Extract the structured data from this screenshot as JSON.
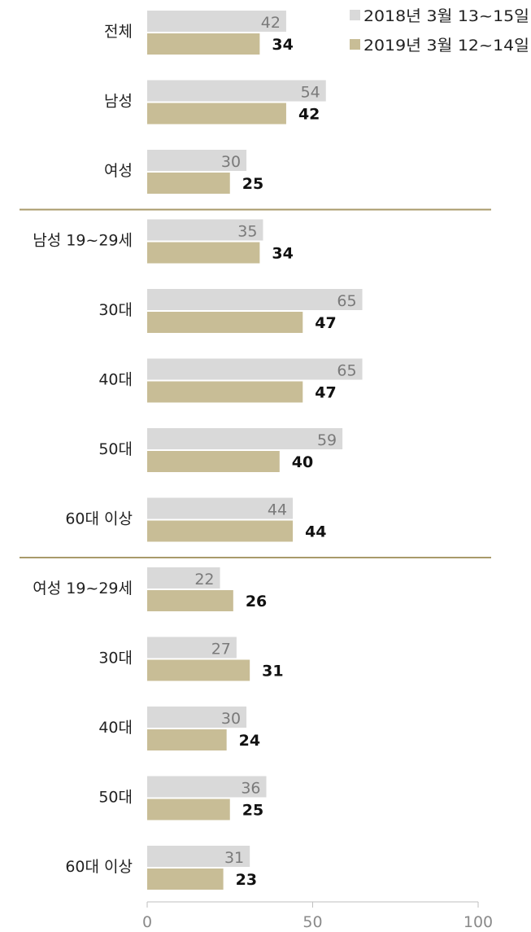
{
  "chart_data": {
    "type": "bar",
    "orientation": "horizontal",
    "categories": [
      "전체",
      "남성",
      "여성",
      "남성 19~29세",
      "30대",
      "40대",
      "50대",
      "60대 이상",
      "여성 19~29세",
      "30대",
      "40대",
      "50대",
      "60대 이상"
    ],
    "series": [
      {
        "name": "2018년 3월 13~15일",
        "color": "#d9d9d9",
        "values": [
          42,
          54,
          30,
          35,
          65,
          65,
          59,
          44,
          22,
          27,
          30,
          36,
          31
        ]
      },
      {
        "name": "2019년 3월 12~14일",
        "color": "#c8bd96",
        "values": [
          34,
          42,
          25,
          34,
          47,
          47,
          40,
          44,
          26,
          31,
          24,
          25,
          23
        ]
      }
    ],
    "xlim": [
      0,
      100
    ],
    "xticks": [
      0,
      50,
      100
    ],
    "group_separators_after": [
      2,
      7
    ],
    "separator_color": "#a89a6a",
    "legend_position": "top-right",
    "grid": false
  }
}
